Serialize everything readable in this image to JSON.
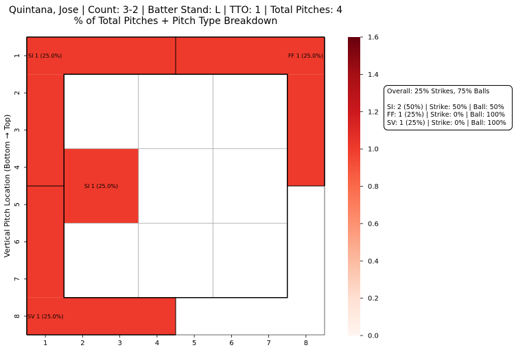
{
  "chart_data": {
    "type": "heatmap",
    "title_lines": [
      "Quintana, Jose | Count: 3-2 | Batter Stand: L | TTO: 1 | Total Pitches: 4",
      "% of Total Pitches + Pitch Type Breakdown"
    ],
    "xlabel": "",
    "ylabel": "Vertical Pitch Location (Bottom → Top)",
    "x_ticks": [
      "1",
      "2",
      "3",
      "4",
      "5",
      "6",
      "7",
      "8"
    ],
    "y_ticks": [
      "1",
      "2",
      "3",
      "4",
      "5",
      "6",
      "7",
      "8"
    ],
    "colormap": "Reds",
    "vmin": 0.0,
    "vmax": 1.6,
    "colorbar_ticks": [
      "0.0",
      "0.2",
      "0.4",
      "0.6",
      "0.8",
      "1.0",
      "1.2",
      "1.4",
      "1.6"
    ],
    "zones": [
      {
        "name": "outside-top-left",
        "cols": [
          1,
          4
        ],
        "rows": [
          1,
          1
        ],
        "extra": {
          "cols": [
            1,
            1
          ],
          "rows": [
            2,
            4
          ]
        },
        "value": 1.0,
        "label": "SI 1 (25.0%)"
      },
      {
        "name": "outside-top-right",
        "cols": [
          5,
          8
        ],
        "rows": [
          1,
          1
        ],
        "extra": {
          "cols": [
            8,
            8
          ],
          "rows": [
            2,
            4
          ]
        },
        "value": 1.0,
        "label": "FF 1 (25.0%)"
      },
      {
        "name": "outside-bottom-left",
        "cols": [
          1,
          4
        ],
        "rows": [
          8,
          8
        ],
        "extra": {
          "cols": [
            1,
            1
          ],
          "rows": [
            5,
            7
          ]
        },
        "value": 1.0,
        "label": "SV 1 (25.0%)"
      },
      {
        "name": "outside-bottom-right",
        "cols": [
          5,
          8
        ],
        "rows": [
          8,
          8
        ],
        "extra": {
          "cols": [
            8,
            8
          ],
          "rows": [
            5,
            7
          ]
        },
        "value": 0.0,
        "label": ""
      },
      {
        "name": "zone-1",
        "cols": [
          2,
          3
        ],
        "rows": [
          2,
          3
        ],
        "value": 0.0,
        "label": ""
      },
      {
        "name": "zone-2",
        "cols": [
          4,
          5
        ],
        "rows": [
          2,
          3
        ],
        "value": 0.0,
        "label": ""
      },
      {
        "name": "zone-3",
        "cols": [
          6,
          7
        ],
        "rows": [
          2,
          3
        ],
        "value": 0.0,
        "label": ""
      },
      {
        "name": "zone-4",
        "cols": [
          2,
          3
        ],
        "rows": [
          4,
          5
        ],
        "value": 1.0,
        "label": "SI 1 (25.0%)"
      },
      {
        "name": "zone-5",
        "cols": [
          4,
          5
        ],
        "rows": [
          4,
          5
        ],
        "value": 0.0,
        "label": ""
      },
      {
        "name": "zone-6",
        "cols": [
          6,
          7
        ],
        "rows": [
          4,
          5
        ],
        "value": 0.0,
        "label": ""
      },
      {
        "name": "zone-7",
        "cols": [
          2,
          3
        ],
        "rows": [
          6,
          7
        ],
        "value": 0.0,
        "label": ""
      },
      {
        "name": "zone-8",
        "cols": [
          4,
          5
        ],
        "rows": [
          6,
          7
        ],
        "value": 0.0,
        "label": ""
      },
      {
        "name": "zone-9",
        "cols": [
          6,
          7
        ],
        "rows": [
          6,
          7
        ],
        "value": 0.0,
        "label": ""
      }
    ],
    "colors": {
      "filled": "#ee3a2c",
      "empty": "#ffffff",
      "grid": "#a0a0a0",
      "border": "#000000"
    }
  },
  "stats_box": {
    "overall": "Overall: 25% Strikes, 75% Balls",
    "lines": [
      "SI: 2 (50%) | Strike: 50% | Ball: 50%",
      "FF: 1 (25%) | Strike: 0% | Ball: 100%",
      "SV: 1 (25%) | Strike: 0% | Ball: 100%"
    ]
  }
}
